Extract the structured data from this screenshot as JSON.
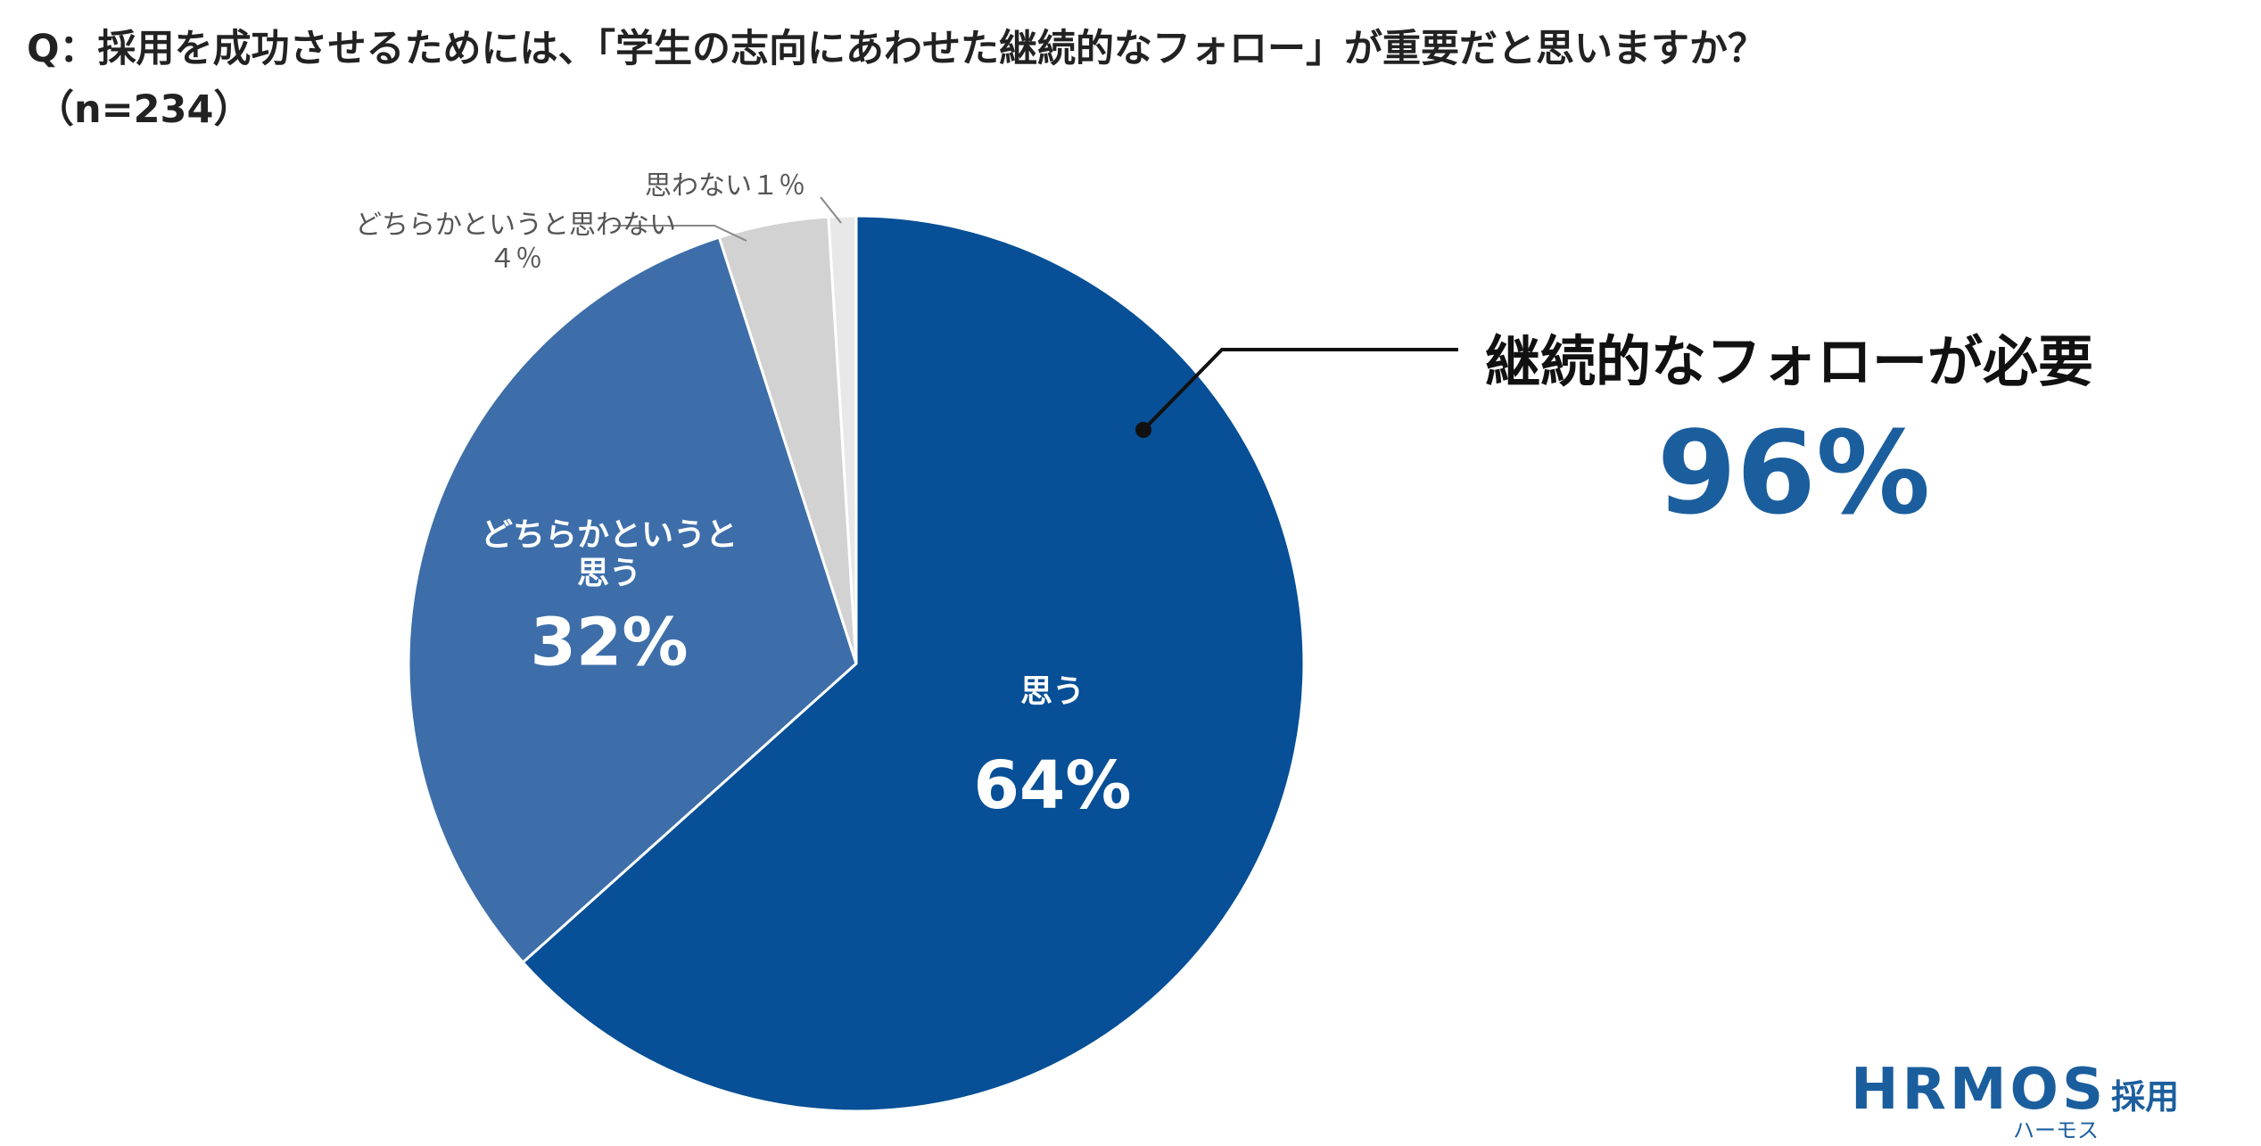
{
  "chart_data": {
    "type": "pie",
    "title": "Q：採用を成功させるためには、「学生の志向にあわせた継続的なフォロー」が重要だと思いますか？",
    "subtitle": "（n=234）",
    "categories": [
      "思う",
      "どちらかというと思う",
      "どちらかというと思わない",
      "思わない"
    ],
    "values": [
      64,
      32,
      4,
      1
    ],
    "value_labels": [
      "64%",
      "32%",
      "４％",
      "１％"
    ],
    "colors": [
      "#074f96",
      "#3d6ea9",
      "#d2d2d2",
      "#e8e8e8"
    ],
    "annotation": {
      "text": "継続的なフォローが必要",
      "highlight": "96%"
    }
  },
  "branding": {
    "name": "HRMOS",
    "sub": "採用",
    "kana": "ハーモス"
  }
}
